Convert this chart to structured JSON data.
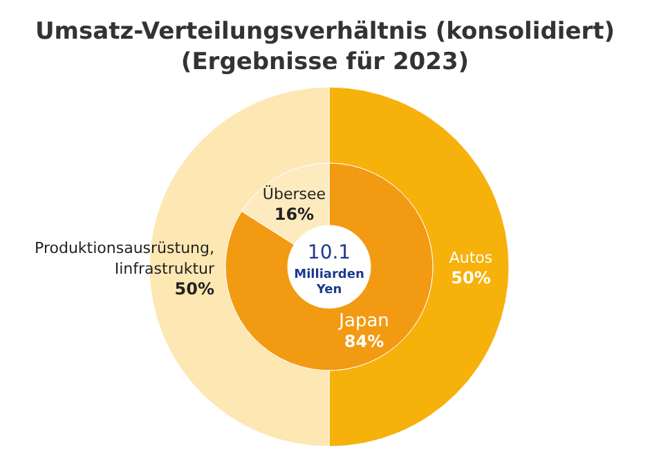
{
  "chart_data": [
    {
      "type": "donut",
      "title": "Umsatz-Verteilungsverhältnis (konsolidiert)",
      "subtitle": "(Ergebnisse für 2023)",
      "categories": [
        "Autos",
        "Produktionsausrüstung, Iinfrastruktur"
      ],
      "values": [
        50,
        50
      ],
      "value_labels": [
        "50%",
        "50%"
      ],
      "colors": [
        "#f6b10a",
        "#fde7b3"
      ]
    },
    {
      "type": "donut",
      "categories": [
        "Japan",
        "Übersee"
      ],
      "values": [
        84,
        16
      ],
      "value_labels": [
        "84%",
        "16%"
      ],
      "colors": [
        "#f29a12",
        "#fdebbf"
      ],
      "annotations": [
        "10.1",
        "Milliarden Yen"
      ]
    }
  ]
}
